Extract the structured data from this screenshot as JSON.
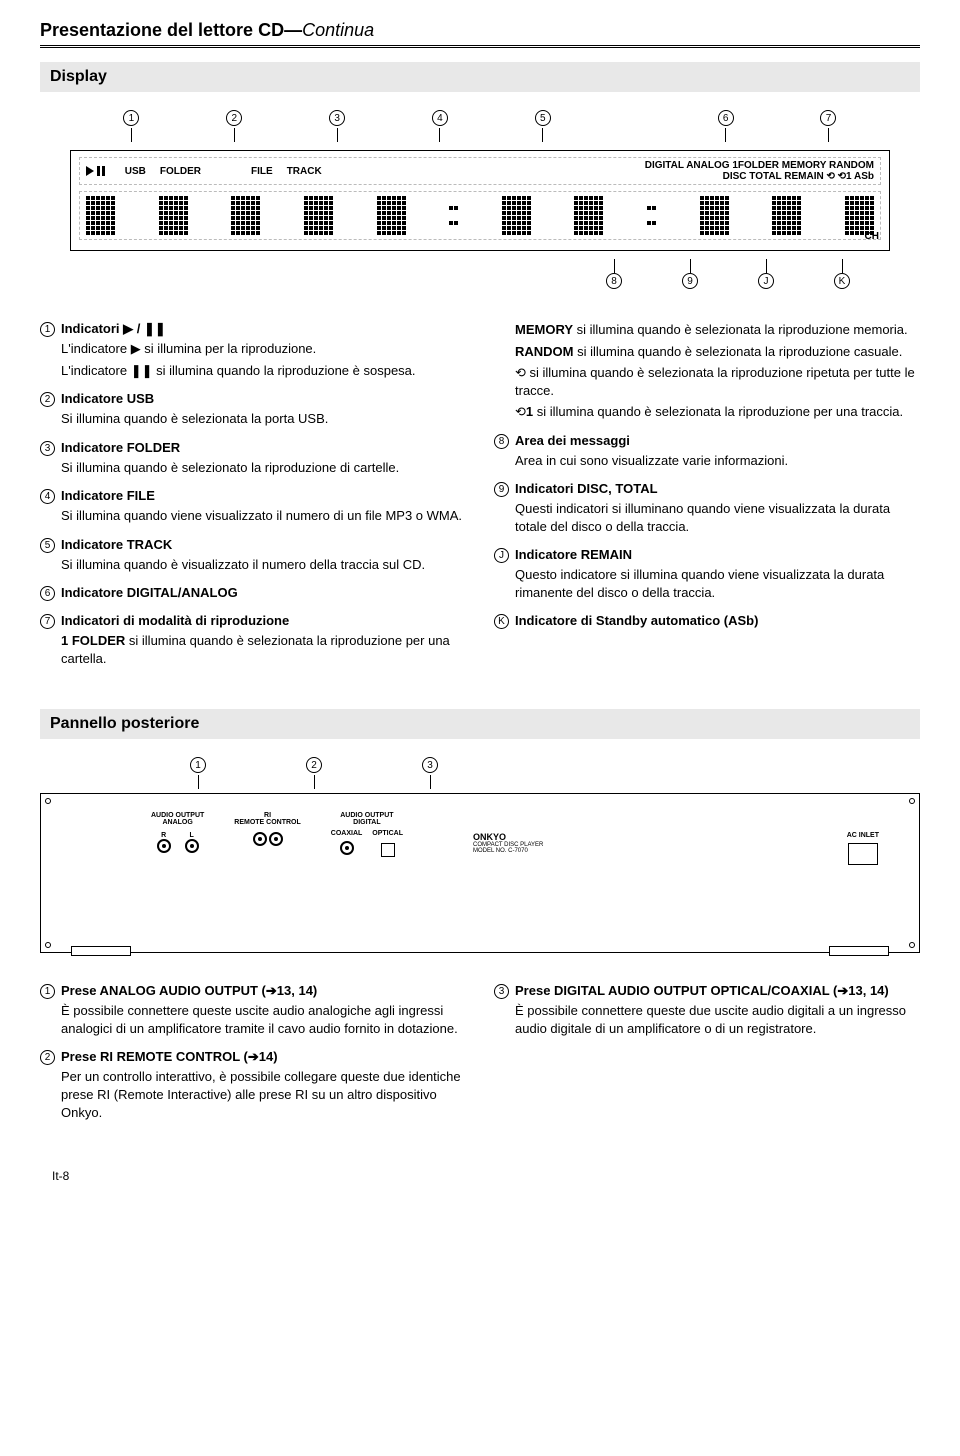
{
  "page_title_main": "Presentazione del lettore CD",
  "page_title_sep": "—",
  "page_title_cont": "Continua",
  "section_display": "Display",
  "section_rear": "Pannello posteriore",
  "page_number": "It-8",
  "display_top_callouts": [
    "1",
    "2",
    "3",
    "4",
    "5",
    "6",
    "7"
  ],
  "display_bottom_callouts": [
    "8",
    "9",
    "J",
    "K"
  ],
  "disp_labels": {
    "usb": "USB",
    "folder": "FOLDER",
    "file": "FILE",
    "track": "TRACK",
    "right_top": "DIGITAL ANALOG 1FOLDER MEMORY RANDOM",
    "right_bot": "DISC TOTAL REMAIN ⟲ ⟲1 ASb",
    "ch": "CH"
  },
  "left_items": [
    {
      "num": "1",
      "title": "Indicatori ▶ / ❚❚",
      "body": [
        "L'indicatore ▶ si illumina per la riproduzione.",
        "L'indicatore ❚❚ si illumina quando la riproduzione è sospesa."
      ]
    },
    {
      "num": "2",
      "title": "Indicatore USB",
      "body": [
        "Si illumina quando è selezionata la porta USB."
      ]
    },
    {
      "num": "3",
      "title": "Indicatore FOLDER",
      "body": [
        "Si illumina quando è selezionato la riproduzione di cartelle."
      ]
    },
    {
      "num": "4",
      "title": "Indicatore FILE",
      "body": [
        "Si illumina quando viene visualizzato il numero di un file MP3 o WMA."
      ]
    },
    {
      "num": "5",
      "title": "Indicatore TRACK",
      "body": [
        "Si illumina quando è visualizzato il numero della traccia sul CD."
      ]
    },
    {
      "num": "6",
      "title": "Indicatore DIGITAL/ANALOG",
      "body": []
    },
    {
      "num": "7",
      "title": "Indicatori di modalità di riproduzione",
      "body": [
        "<b>1 FOLDER</b> si illumina quando è selezionata la riproduzione per una cartella."
      ]
    }
  ],
  "right_items": [
    {
      "body": [
        "<b>MEMORY</b> si illumina quando è selezionata la riproduzione memoria.",
        "<b>RANDOM</b> si illumina quando è selezionata la riproduzione casuale.",
        "⟲ si illumina quando è selezionata la riproduzione ripetuta per tutte le tracce.",
        "⟲<b>1</b> si illumina quando è selezionata la riproduzione per una traccia."
      ]
    },
    {
      "num": "8",
      "title": "Area dei messaggi",
      "body": [
        "Area in cui sono visualizzate varie informazioni."
      ]
    },
    {
      "num": "9",
      "title": "Indicatori DISC, TOTAL",
      "body": [
        "Questi indicatori si illuminano quando viene visualizzata la durata totale del disco o della traccia."
      ]
    },
    {
      "num": "J",
      "title": "Indicatore REMAIN",
      "body": [
        "Questo indicatore si illumina quando viene visualizzata la durata rimanente del disco o della traccia."
      ]
    },
    {
      "num": "K",
      "title": "Indicatore di Standby automatico (ASb)",
      "body": []
    }
  ],
  "rear_callouts": [
    "1",
    "2",
    "3"
  ],
  "rear_labels": {
    "audio_output": "AUDIO OUTPUT",
    "analog": "ANALOG",
    "r": "R",
    "l": "L",
    "ri": "RI",
    "remote_control": "REMOTE CONTROL",
    "digital": "DIGITAL",
    "coaxial": "COAXIAL",
    "optical": "OPTICAL",
    "brand": "ONKYO",
    "brand_sub1": "COMPACT DISC PLAYER",
    "brand_sub2": "MODEL NO. C-7070",
    "ac": "AC INLET"
  },
  "bottom_left": [
    {
      "num": "1",
      "title": "Prese ANALOG AUDIO OUTPUT (➔13, 14)",
      "body": [
        "È possibile connettere queste uscite audio analogiche agli ingressi analogici di un amplificatore tramite il cavo audio fornito in dotazione."
      ]
    },
    {
      "num": "2",
      "title": "Prese RI REMOTE CONTROL (➔14)",
      "body": [
        "Per un controllo interattivo, è possibile collegare queste due identiche prese RI (Remote Interactive) alle prese RI su un altro dispositivo Onkyo."
      ]
    }
  ],
  "bottom_right": [
    {
      "num": "3",
      "title": "Prese DIGITAL AUDIO OUTPUT OPTICAL/COAXIAL (➔13, 14)",
      "body": [
        "È possibile connettere queste due uscite audio digitali a un ingresso audio digitale di un amplificatore o di un registratore."
      ]
    }
  ],
  "colors": {
    "section_bg": "#e8e8e8",
    "text": "#000000",
    "bg": "#ffffff",
    "dash": "#bbbbbb"
  }
}
